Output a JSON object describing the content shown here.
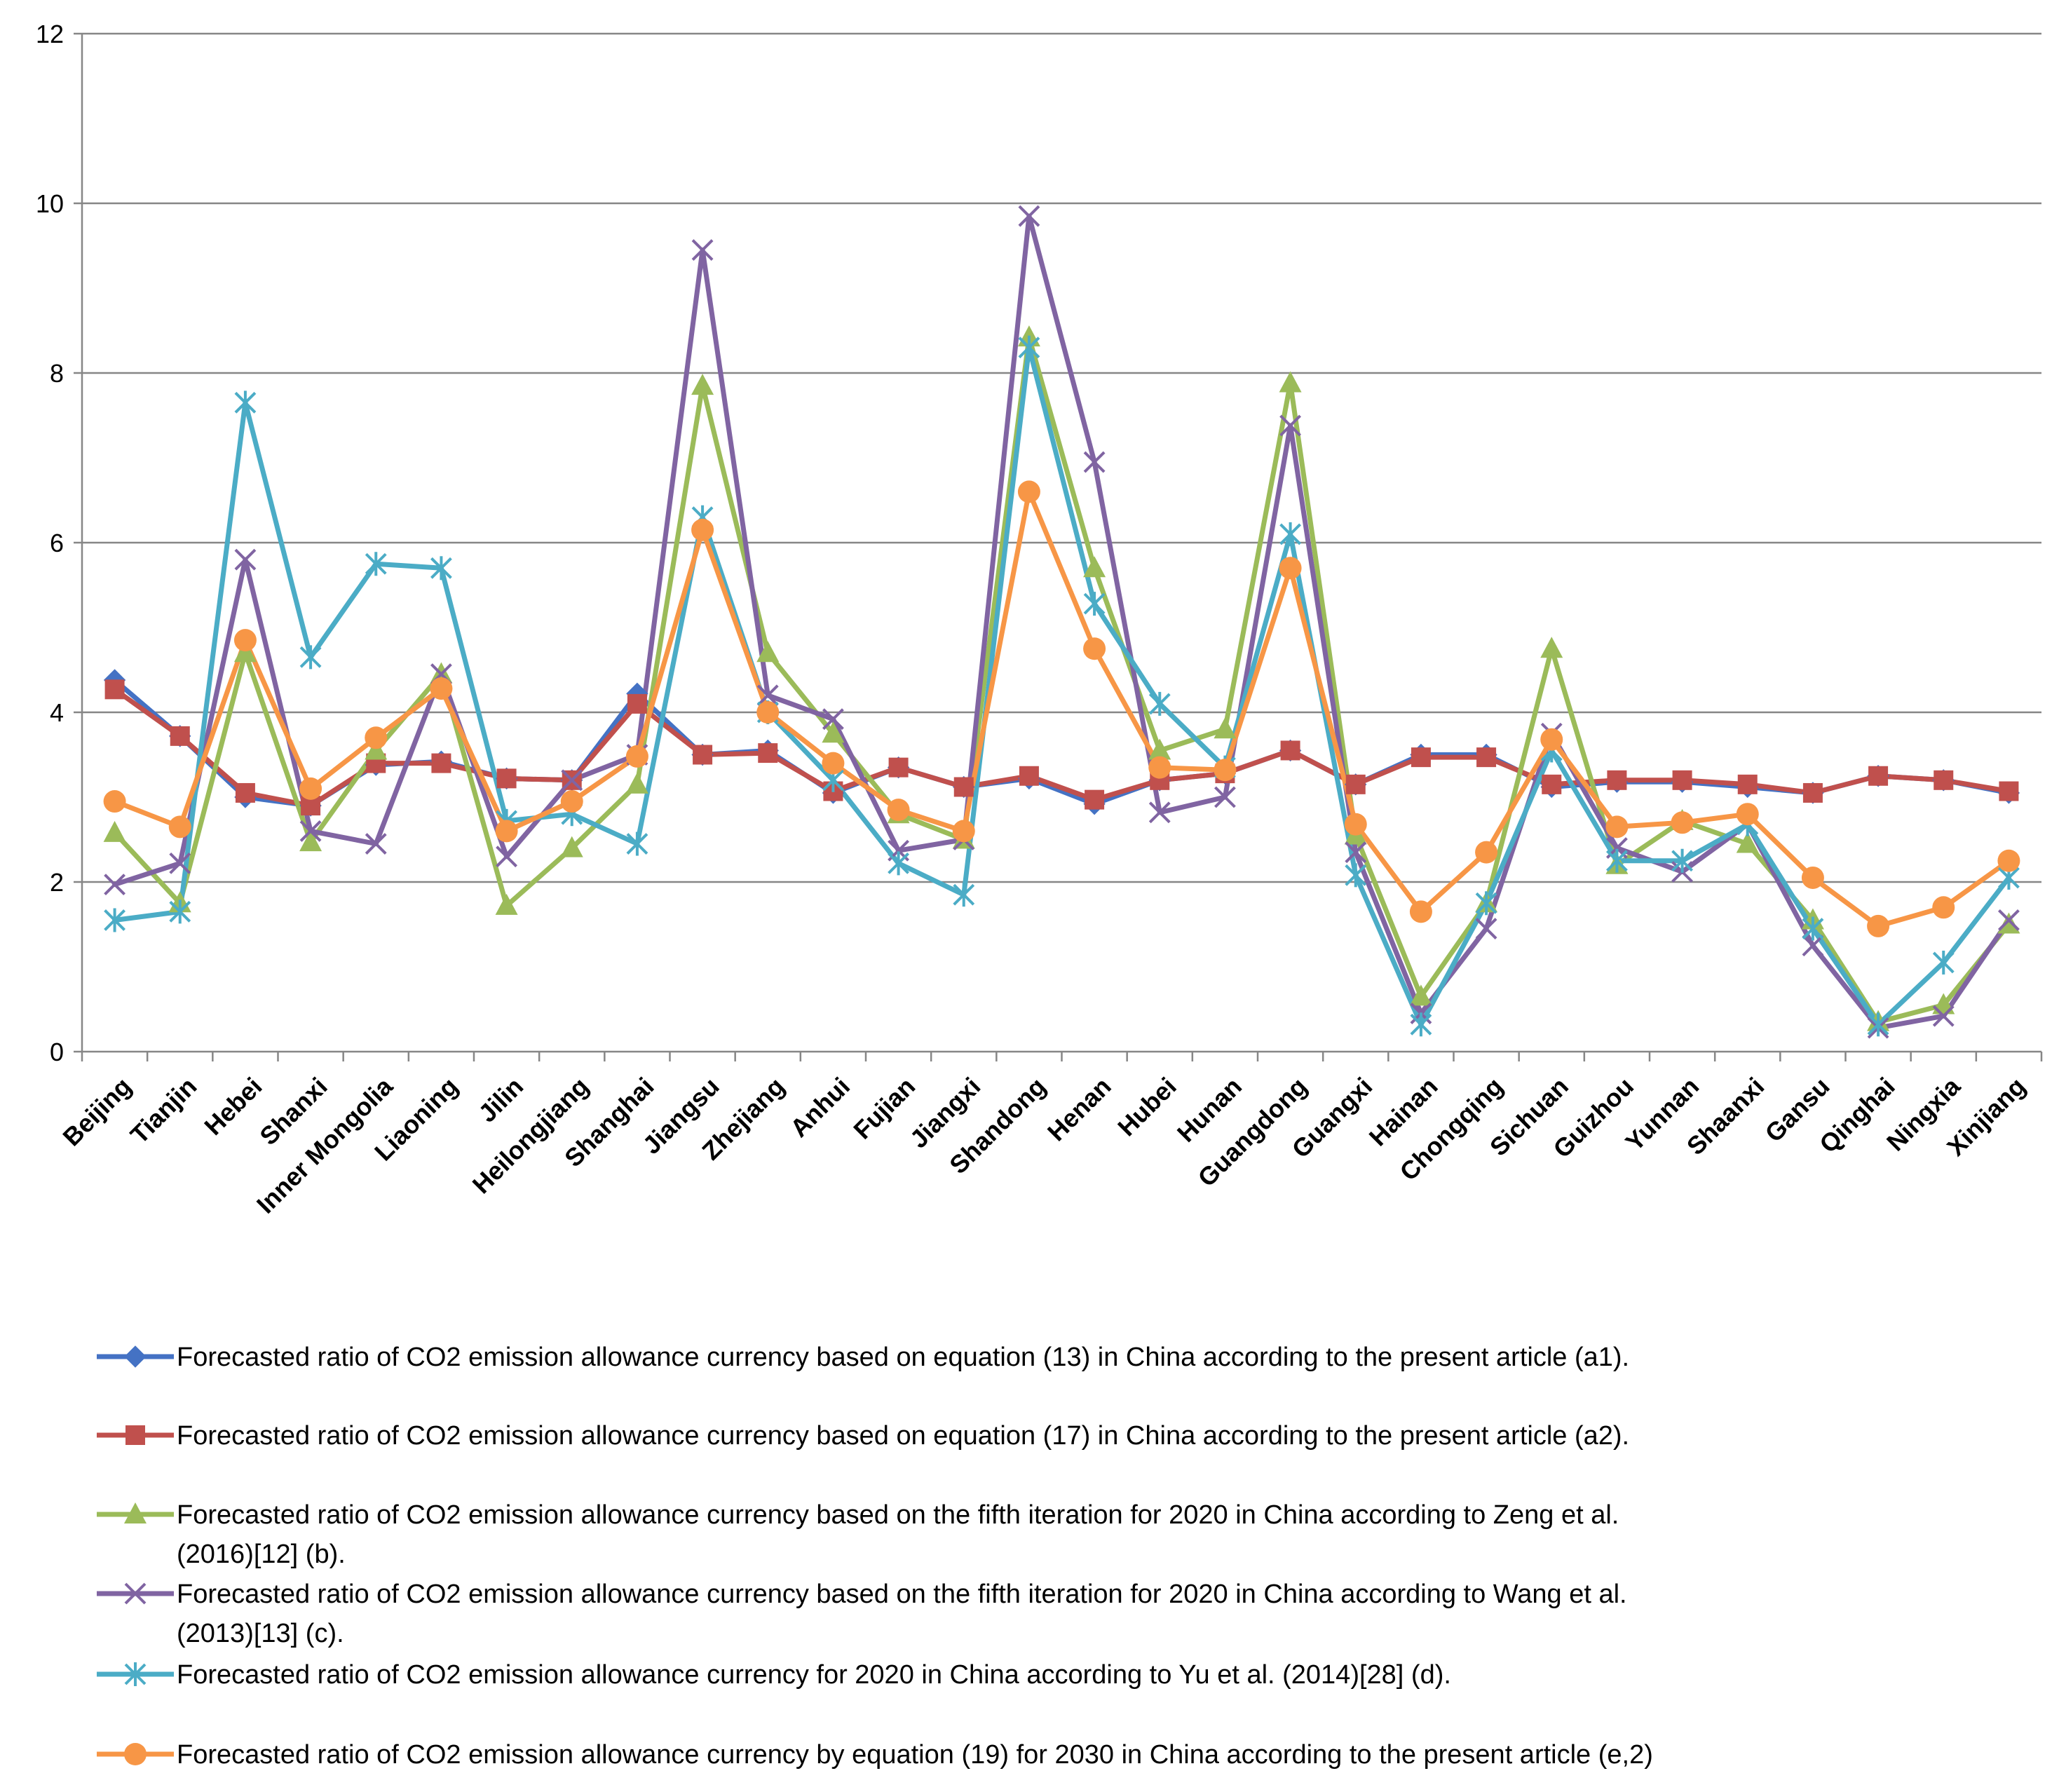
{
  "chart_data": {
    "type": "line",
    "title": "",
    "xlabel": "",
    "ylabel": "",
    "ylim": [
      0,
      12
    ],
    "yticks": [
      0,
      2,
      4,
      6,
      8,
      10,
      12
    ],
    "grid": "horizontal",
    "legend_position": "bottom",
    "categories": [
      "Beijing",
      "Tianjin",
      "Hebei",
      "Shanxi",
      "Inner Mongolia",
      "Liaoning",
      "Jilin",
      "Heilongjiang",
      "Shanghai",
      "Jiangsu",
      "Zhejiang",
      "Anhui",
      "Fujian",
      "Jiangxi",
      "Shandong",
      "Henan",
      "Hubei",
      "Hunan",
      "Guangdong",
      "Guangxi",
      "Hainan",
      "Chongqing",
      "Sichuan",
      "Guizhou",
      "Yunnan",
      "Shaanxi",
      "Gansu",
      "Qinghai",
      "Ningxia",
      "Xinjiang"
    ],
    "series": [
      {
        "name": "a1",
        "color": "#4472C4",
        "marker": "diamond",
        "legend_lines": [
          "Forecasted ratio of CO2 emission allowance currency based on equation (13) in China according to the present article (a1)."
        ],
        "values": [
          4.38,
          3.72,
          3.0,
          2.9,
          3.38,
          3.42,
          3.22,
          3.2,
          4.22,
          3.5,
          3.55,
          3.05,
          3.35,
          3.12,
          3.22,
          2.92,
          3.2,
          3.28,
          3.55,
          3.15,
          3.5,
          3.5,
          3.12,
          3.18,
          3.18,
          3.12,
          3.05,
          3.25,
          3.2,
          3.05
        ]
      },
      {
        "name": "a2",
        "color": "#C0504D",
        "marker": "square",
        "legend_lines": [
          "Forecasted ratio of CO2 emission allowance currency based on equation (17) in China according to the present article (a2)."
        ],
        "values": [
          4.27,
          3.72,
          3.05,
          2.9,
          3.4,
          3.4,
          3.22,
          3.2,
          4.1,
          3.5,
          3.52,
          3.07,
          3.35,
          3.12,
          3.25,
          2.97,
          3.2,
          3.28,
          3.55,
          3.15,
          3.47,
          3.47,
          3.15,
          3.2,
          3.2,
          3.15,
          3.05,
          3.25,
          3.2,
          3.07
        ]
      },
      {
        "name": "b",
        "color": "#9BBB59",
        "marker": "triangle",
        "legend_lines": [
          "Forecasted ratio of CO2 emission allowance currency based on the fifth iteration for 2020 in China according to Zeng et al.",
          "(2016)[12] (b)."
        ],
        "values": [
          2.58,
          1.75,
          4.7,
          2.47,
          3.55,
          4.45,
          1.72,
          2.4,
          3.15,
          7.85,
          4.7,
          3.75,
          2.8,
          2.5,
          8.42,
          5.7,
          3.55,
          3.8,
          7.88,
          2.55,
          0.65,
          1.75,
          4.75,
          2.2,
          2.72,
          2.45,
          1.55,
          0.35,
          0.55,
          1.5
        ]
      },
      {
        "name": "c",
        "color": "#8064A2",
        "marker": "x",
        "legend_lines": [
          "Forecasted ratio of CO2 emission allowance currency based on the fifth iteration for 2020 in China according to Wang et al.",
          "(2013)[13] (c)."
        ],
        "values": [
          1.97,
          2.22,
          5.8,
          2.6,
          2.45,
          4.45,
          2.3,
          3.2,
          3.5,
          9.45,
          4.2,
          3.92,
          2.37,
          2.5,
          9.85,
          6.95,
          2.82,
          3.0,
          7.38,
          2.35,
          0.45,
          1.45,
          3.75,
          2.4,
          2.12,
          2.68,
          1.25,
          0.28,
          0.42,
          1.55
        ]
      },
      {
        "name": "d",
        "color": "#4BACC6",
        "marker": "star",
        "legend_lines": [
          "Forecasted ratio of CO2 emission allowance currency for 2020 in China according to Yu et al. (2014)[28] (d)."
        ],
        "values": [
          1.55,
          1.65,
          7.65,
          4.65,
          5.75,
          5.7,
          2.72,
          2.8,
          2.45,
          6.3,
          4.0,
          3.2,
          2.22,
          1.85,
          8.3,
          5.28,
          4.1,
          3.35,
          6.1,
          2.08,
          0.32,
          1.75,
          3.55,
          2.25,
          2.25,
          2.68,
          1.45,
          0.32,
          1.05,
          2.05
        ]
      },
      {
        "name": "e,2",
        "color": "#F79646",
        "marker": "circle",
        "legend_lines": [
          "Forecasted ratio of CO2 emission allowance currency by equation (19) for 2030 in China according to the present article (e,2)"
        ],
        "values": [
          2.95,
          2.65,
          4.85,
          3.1,
          3.7,
          4.28,
          2.6,
          2.95,
          3.48,
          6.15,
          4.0,
          3.4,
          2.85,
          2.6,
          6.6,
          4.75,
          3.35,
          3.32,
          5.7,
          2.68,
          1.65,
          2.35,
          3.68,
          2.65,
          2.7,
          2.8,
          2.05,
          1.48,
          1.7,
          2.25
        ]
      }
    ]
  }
}
